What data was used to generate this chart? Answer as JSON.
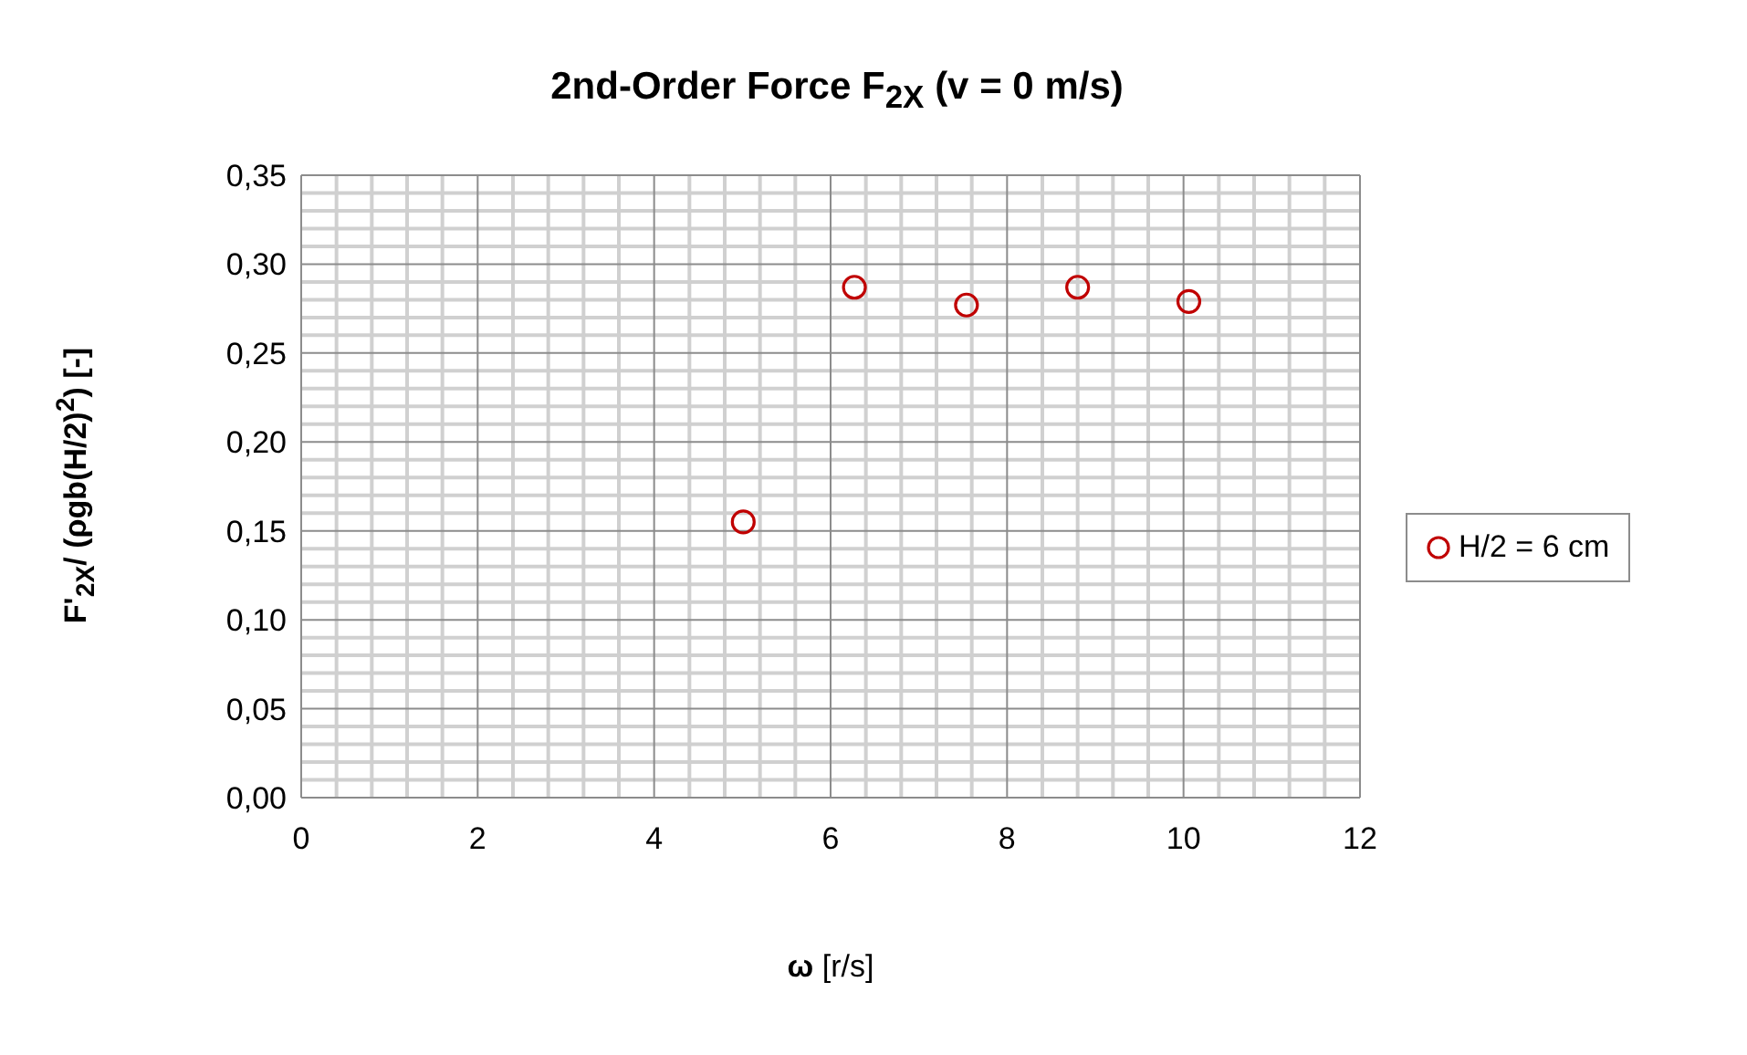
{
  "chart_data": {
    "type": "scatter",
    "title": "2nd-Order Force F$_{2X}$ (v = 0 m/s)",
    "xlabel": "ω [r/s]",
    "ylabel": "F'$_{2X}$/ (ρgb(H/2)$^{2}$) [-]",
    "x": [
      5.01,
      6.27,
      7.54,
      8.8,
      10.06
    ],
    "series": [
      {
        "name": "H/2 = 6 cm",
        "color": "#c00000",
        "values": [
          0.155,
          0.287,
          0.277,
          0.287,
          0.279
        ]
      }
    ],
    "marker": "circle",
    "grid": true,
    "legend": "right",
    "xlim": [
      0,
      12
    ],
    "xticks": [
      0,
      2,
      4,
      6,
      8,
      10,
      12
    ],
    "ylim": [
      0,
      0.35
    ],
    "yticks": [
      {
        "value": 0,
        "label": "0,00"
      },
      {
        "value": 0.05,
        "label": "0,05"
      },
      {
        "value": 0.1,
        "label": "0,10"
      },
      {
        "value": 0.15,
        "label": "0,15"
      },
      {
        "value": 0.2,
        "label": "0,20"
      },
      {
        "value": 0.25,
        "label": "0,25"
      },
      {
        "value": 0.3,
        "label": "0,30"
      },
      {
        "value": 0.35,
        "label": "0,35"
      }
    ]
  }
}
